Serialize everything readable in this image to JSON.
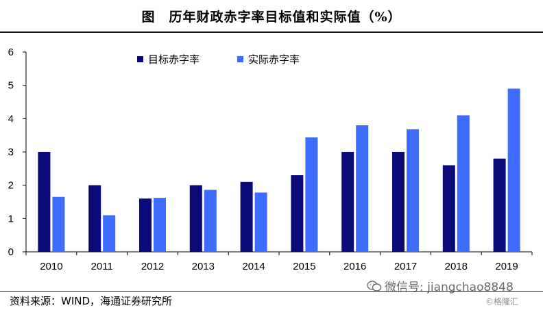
{
  "header": {
    "title": "图　历年财政赤字率目标值和实际值（%）"
  },
  "footer": {
    "source": "资料来源：WIND，海通证券研究所",
    "wechat_label": "微信号: jiangchao8848",
    "watermark": "©格隆汇"
  },
  "chart_data": {
    "type": "bar",
    "title": "图　历年财政赤字率目标值和实际值（%）",
    "xlabel": "",
    "ylabel": "",
    "categories": [
      "2010",
      "2011",
      "2012",
      "2013",
      "2014",
      "2015",
      "2016",
      "2017",
      "2018",
      "2019"
    ],
    "series": [
      {
        "name": "目标赤字率",
        "color": "#0a0a78",
        "values": [
          3.0,
          2.0,
          1.6,
          2.0,
          2.1,
          2.3,
          3.0,
          3.0,
          2.6,
          2.8
        ]
      },
      {
        "name": "实际赤字率",
        "color": "#3d6cff",
        "values": [
          1.65,
          1.1,
          1.62,
          1.86,
          1.78,
          3.44,
          3.8,
          3.68,
          4.1,
          4.9
        ]
      }
    ],
    "ylim": [
      0,
      6
    ],
    "yticks": [
      "0",
      "1",
      "2",
      "3",
      "4",
      "5",
      "6"
    ],
    "grid": false,
    "legend_position": "top-left"
  }
}
